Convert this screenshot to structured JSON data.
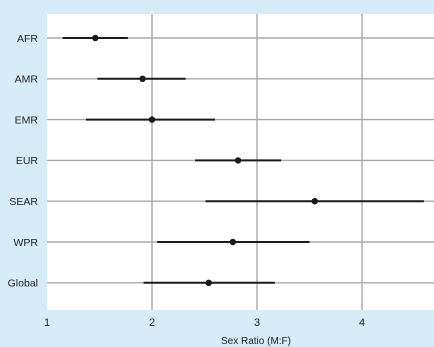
{
  "chart_data": {
    "type": "forest",
    "title": "",
    "xlabel": "Sex Ratio (M:F)",
    "ylabel": "",
    "xlim": [
      1,
      4.65
    ],
    "x_ticks": [
      1,
      2,
      3,
      4
    ],
    "grid": "vertical",
    "categories": [
      "AFR",
      "AMR",
      "EMR",
      "EUR",
      "SEAR",
      "WPR",
      "Global"
    ],
    "series": [
      {
        "points": [
          {
            "label": "AFR",
            "estimate": 1.46,
            "lower": 1.15,
            "upper": 1.77
          },
          {
            "label": "AMR",
            "estimate": 1.91,
            "lower": 1.48,
            "upper": 2.32
          },
          {
            "label": "EMR",
            "estimate": 2.0,
            "lower": 1.37,
            "upper": 2.6
          },
          {
            "label": "EUR",
            "estimate": 2.82,
            "lower": 2.41,
            "upper": 3.23
          },
          {
            "label": "SEAR",
            "estimate": 3.55,
            "lower": 2.51,
            "upper": 4.59
          },
          {
            "label": "WPR",
            "estimate": 2.77,
            "lower": 2.05,
            "upper": 3.5
          },
          {
            "label": "Global",
            "estimate": 2.54,
            "lower": 1.92,
            "upper": 3.17
          }
        ]
      }
    ],
    "colors": {
      "background": "#d6ecf9",
      "plot_background": "#ffffff",
      "grid": "#a8a8a8",
      "marks": "#1a1a1a"
    }
  }
}
